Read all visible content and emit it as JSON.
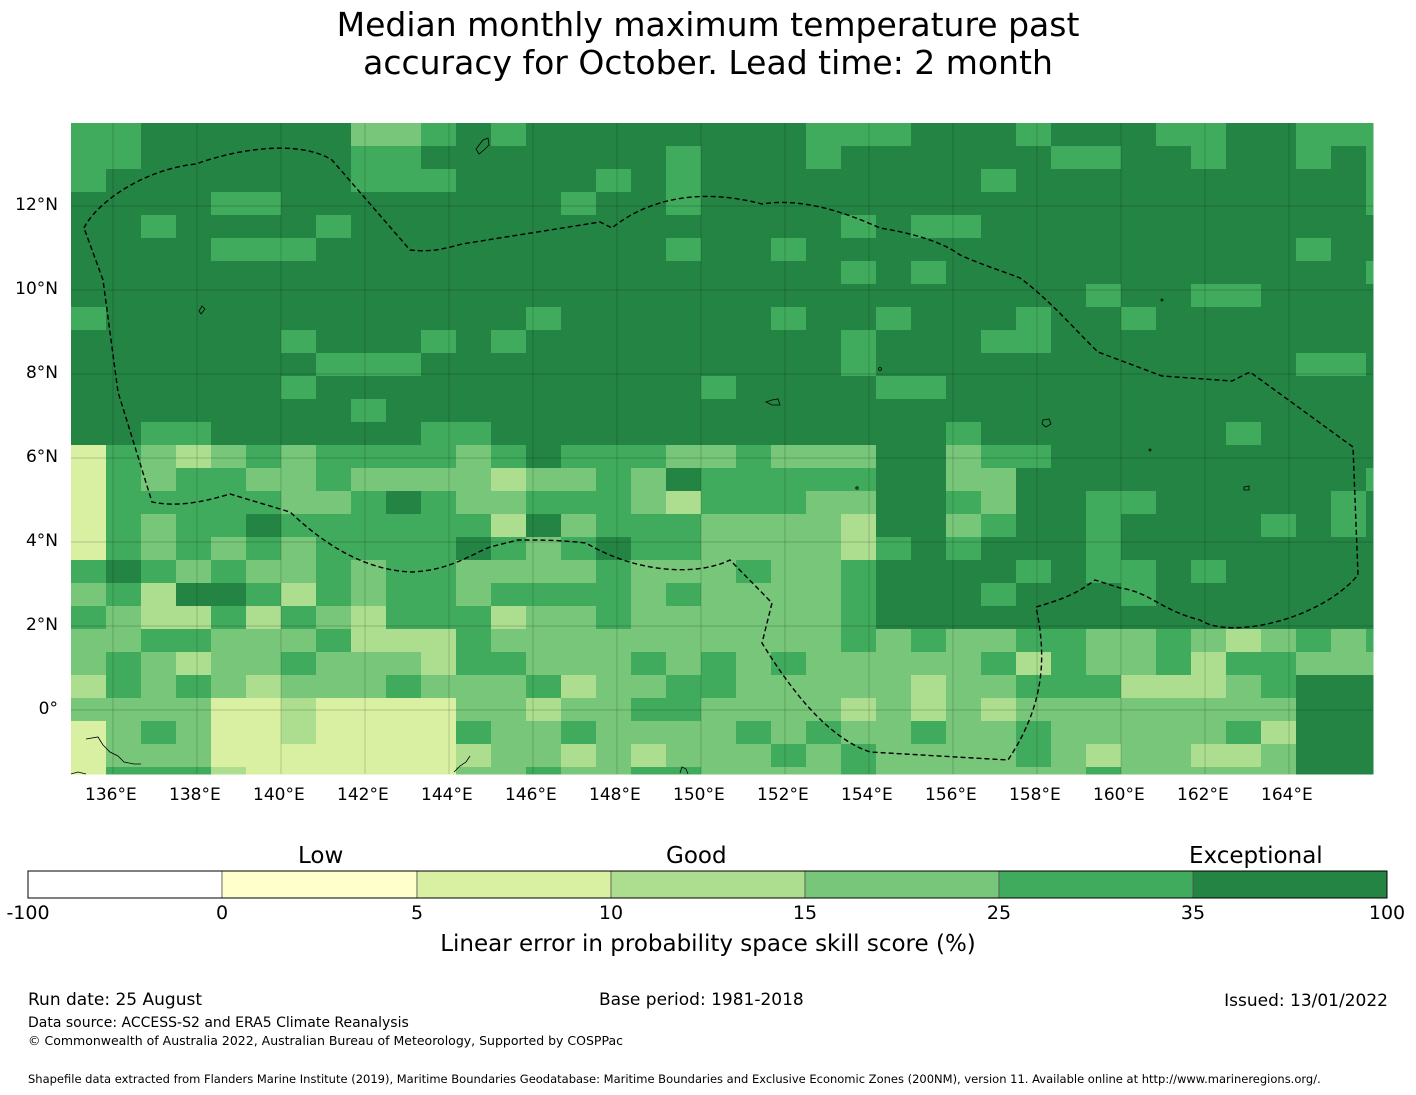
{
  "title": {
    "line1": "Median monthly maximum temperature past",
    "line2": "accuracy for October. Lead time: 2 month"
  },
  "map": {
    "lon_ticks": [
      "136°E",
      "138°E",
      "140°E",
      "142°E",
      "144°E",
      "146°E",
      "148°E",
      "150°E",
      "152°E",
      "154°E",
      "156°E",
      "158°E",
      "160°E",
      "162°E",
      "164°E"
    ],
    "lat_ticks": [
      "12°N",
      "10°N",
      "8°N",
      "6°N",
      "4°N",
      "2°N",
      "0°"
    ],
    "colors": {
      "exceptional": "#238443",
      "good_high": "#41ab5d",
      "good_mid": "#78c679",
      "good_low": "#addd8e",
      "low_high": "#d9f0a3",
      "low": "#ffffcc",
      "boundary": "#000000"
    }
  },
  "colorbar": {
    "category_labels": [
      "Low",
      "Good",
      "Exceptional"
    ],
    "ticks": [
      "-100",
      "0",
      "5",
      "10",
      "15",
      "25",
      "35",
      "100"
    ],
    "colors": [
      "#ffffff",
      "#ffffcc",
      "#d9f0a3",
      "#addd8e",
      "#78c679",
      "#41ab5d",
      "#238443"
    ],
    "title": "Linear error in probability space skill score (%)"
  },
  "footer": {
    "run_date": "Run date: 25 August",
    "base_period": "Base period: 1981-2018",
    "issued": "Issued: 13/01/2022",
    "data_source": "Data source: ACCESS-S2 and ERA5 Climate Reanalysis",
    "copyright": "© Commonwealth of Australia 2022, Australian Bureau of Meteorology, Supported by COSPPac",
    "shapefile": "Shapefile data extracted from Flanders Marine Institute (2019), Maritime Boundaries Geodatabase: Maritime Boundaries and Exclusive Economic Zones (200NM), version 11. Available online at http://www.marineregions.org/."
  }
}
